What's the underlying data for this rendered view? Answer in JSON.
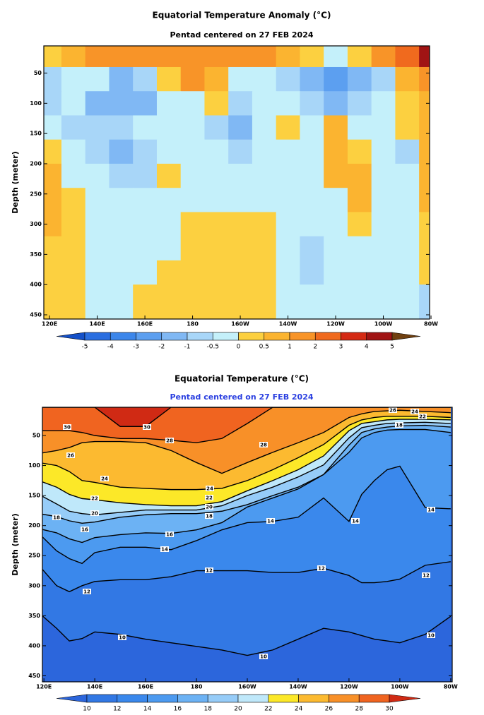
{
  "chart_data": [
    {
      "type": "heatmap",
      "title": "Equatorial Temperature Anomaly (°C)",
      "subtitle": "Pentad centered on 27 FEB 2024",
      "ylabel": "Depth (meter)",
      "xlim": [
        117.6,
        279.4
      ],
      "ylim": [
        5,
        457
      ],
      "xticks": [
        {
          "value": 120,
          "label": "120E"
        },
        {
          "value": 140,
          "label": "140E"
        },
        {
          "value": 160,
          "label": "160E"
        },
        {
          "value": 180,
          "label": "180"
        },
        {
          "value": 200,
          "label": "160W"
        },
        {
          "value": 220,
          "label": "140W"
        },
        {
          "value": 240,
          "label": "120W"
        },
        {
          "value": 260,
          "label": "100W"
        },
        {
          "value": 280,
          "label": "80W"
        }
      ],
      "yticks": [
        50,
        100,
        150,
        200,
        250,
        300,
        350,
        400,
        450
      ],
      "x": [
        120,
        130,
        140,
        150,
        160,
        170,
        180,
        190,
        200,
        210,
        220,
        230,
        240,
        250,
        260,
        270,
        280
      ],
      "y": [
        20,
        60,
        100,
        140,
        180,
        220,
        260,
        300,
        340,
        380,
        420
      ],
      "values": [
        [
          0.3,
          0.7,
          1.2,
          1.5,
          1.5,
          1.2,
          1.5,
          1.5,
          1.5,
          1.2,
          0.7,
          0.3,
          -0.3,
          0.3,
          1.2,
          2,
          4
        ],
        [
          -1,
          -0.3,
          -0.3,
          -1.2,
          -0.7,
          0.3,
          1.2,
          0.7,
          -0.3,
          -0.3,
          -1,
          -2,
          -3,
          -2,
          -0.7,
          0.7,
          1.5
        ],
        [
          -0.7,
          -0.3,
          -1.2,
          -1.5,
          -1.2,
          -0.3,
          -0.3,
          0.3,
          -0.7,
          -0.3,
          -0.3,
          -0.7,
          -1.5,
          -0.7,
          -0.3,
          0.3,
          0.7
        ],
        [
          -0.3,
          -0.7,
          -1,
          -0.7,
          -0.3,
          -0.3,
          -0.3,
          -0.7,
          -1.2,
          -0.3,
          0.3,
          -0.3,
          0.7,
          -0.3,
          -0.3,
          0.3,
          0.7
        ],
        [
          0.3,
          -0.3,
          -0.7,
          -1.2,
          -0.7,
          -0.3,
          -0.3,
          -0.3,
          -0.7,
          -0.3,
          -0.3,
          -0.3,
          0.7,
          0.3,
          -0.3,
          -0.7,
          0.7
        ],
        [
          0.7,
          -0.3,
          -0.3,
          -1,
          -0.7,
          0.3,
          -0.3,
          -0.3,
          -0.3,
          -0.3,
          -0.3,
          -0.3,
          0.7,
          0.7,
          -0.3,
          -0.3,
          0.7
        ],
        [
          0.7,
          0.3,
          -0.3,
          -0.3,
          -0.3,
          -0.3,
          -0.3,
          -0.3,
          -0.3,
          -0.3,
          -0.3,
          -0.3,
          -0.3,
          0.7,
          -0.3,
          -0.3,
          0.7
        ],
        [
          0.7,
          0.3,
          -0.3,
          -0.3,
          -0.3,
          -0.3,
          0.3,
          0.3,
          0.3,
          0.3,
          -0.3,
          -0.3,
          -0.3,
          0.3,
          -0.3,
          -0.3,
          0.3
        ],
        [
          0.3,
          0.3,
          -0.3,
          -0.3,
          -0.3,
          -0.3,
          0.3,
          0.3,
          0.3,
          0.3,
          -0.3,
          -0.7,
          -0.3,
          -0.3,
          -0.3,
          -0.3,
          0.3
        ],
        [
          0.3,
          0.3,
          -0.3,
          -0.3,
          -0.3,
          0.3,
          0.3,
          0.3,
          0.3,
          0.3,
          -0.3,
          -0.7,
          -0.3,
          -0.3,
          -0.3,
          -0.3,
          0.3
        ],
        [
          0.3,
          0.3,
          -0.3,
          -0.3,
          0.3,
          0.3,
          0.3,
          0.3,
          0.3,
          0.3,
          -0.3,
          -0.3,
          -0.3,
          -0.3,
          -0.3,
          -0.3,
          -0.7
        ]
      ],
      "colorbar": {
        "levels": [
          -5,
          -4,
          -3,
          -2,
          -1,
          -0.5,
          0,
          0.5,
          1,
          2,
          3,
          4,
          5
        ],
        "colors": [
          "#1450c8",
          "#2a6ee0",
          "#3c86ea",
          "#5c9ff0",
          "#80b8f4",
          "#a8d6f8",
          "#c4f0fa",
          "#fcd040",
          "#fbb430",
          "#f89428",
          "#f06a1e",
          "#d42a14",
          "#a01414",
          "#704010"
        ]
      }
    },
    {
      "type": "contour",
      "title": "Equatorial Temperature (°C)",
      "subtitle": "Pentad centered on 27 FEB 2024",
      "ylabel": "Depth (meter)",
      "xlim": [
        119.4,
        280.6
      ],
      "ylim": [
        3,
        460
      ],
      "xticks": [
        {
          "value": 120,
          "label": "120E"
        },
        {
          "value": 140,
          "label": "140E"
        },
        {
          "value": 160,
          "label": "160E"
        },
        {
          "value": 180,
          "label": "180"
        },
        {
          "value": 200,
          "label": "160W"
        },
        {
          "value": 220,
          "label": "140W"
        },
        {
          "value": 240,
          "label": "120W"
        },
        {
          "value": 260,
          "label": "100W"
        },
        {
          "value": 280,
          "label": "80W"
        }
      ],
      "yticks": [
        50,
        100,
        150,
        200,
        250,
        300,
        350,
        400,
        450
      ],
      "contour_x": [
        118,
        125,
        130,
        135,
        140,
        150,
        160,
        170,
        180,
        190,
        200,
        210,
        220,
        230,
        240,
        245,
        250,
        255,
        260,
        270,
        280
      ],
      "contours": [
        {
          "level": 10,
          "depth": [
            345,
            371,
            392,
            388,
            377,
            381,
            389,
            395,
            401,
            407,
            416,
            407,
            389,
            371,
            377,
            383,
            389,
            392,
            395,
            381,
            351
          ]
        },
        {
          "level": 12,
          "depth": [
            266,
            300,
            310,
            300,
            293,
            290,
            290,
            285,
            275,
            275,
            275,
            278,
            278,
            271,
            283,
            295,
            295,
            293,
            289,
            266,
            260
          ]
        },
        {
          "level": 14,
          "depth": [
            213,
            242,
            255,
            263,
            245,
            236,
            236,
            240,
            225,
            207,
            195,
            193,
            186,
            154,
            193,
            148,
            125,
            107,
            101,
            170,
            172
          ]
        },
        {
          "level": 16,
          "depth": [
            205,
            212,
            222,
            228,
            220,
            215,
            212,
            213,
            207,
            195,
            169,
            154,
            139,
            115,
            78,
            54,
            45,
            41,
            40,
            40,
            45
          ]
        },
        {
          "level": 18,
          "depth": [
            180,
            185,
            192,
            196,
            194,
            186,
            182,
            180,
            180,
            176,
            165,
            150,
            136,
            115,
            66,
            45,
            39,
            36,
            34,
            33,
            36
          ]
        },
        {
          "level": 20,
          "depth": [
            148,
            164,
            176,
            180,
            182,
            178,
            174,
            174,
            174,
            167,
            150,
            136,
            119,
            99,
            54,
            37,
            33,
            30,
            29,
            28,
            30
          ]
        },
        {
          "level": 22,
          "depth": [
            125,
            136,
            148,
            155,
            157,
            162,
            165,
            167,
            167,
            160,
            142,
            125,
            107,
            84,
            42,
            30,
            27,
            24,
            23,
            23,
            24
          ]
        },
        {
          "level": 24,
          "depth": [
            95,
            100,
            110,
            125,
            128,
            136,
            138,
            140,
            140,
            138,
            125,
            107,
            87,
            65,
            33,
            24,
            20,
            18,
            18,
            18,
            20
          ]
        },
        {
          "level": 26,
          "depth": [
            80,
            75,
            70,
            62,
            60,
            60,
            62,
            75,
            95,
            113,
            95,
            78,
            62,
            45,
            20,
            14,
            10,
            9,
            8,
            10,
            12
          ]
        },
        {
          "level": 28,
          "depth": [
            42,
            42,
            42,
            45,
            50,
            55,
            55,
            58,
            62,
            55,
            30,
            3,
            3,
            3,
            3,
            3,
            3,
            3,
            3,
            3,
            3
          ]
        },
        {
          "level": 30,
          "depth": [
            3,
            3,
            3,
            3,
            3,
            35,
            35,
            3,
            3,
            3,
            3,
            3,
            3,
            3,
            3,
            3,
            3,
            3,
            3,
            3,
            3
          ]
        }
      ],
      "contour_labels": [
        30,
        30,
        28,
        26,
        28,
        24,
        24,
        22,
        22,
        20,
        20,
        18,
        18,
        16,
        16,
        14,
        14,
        14,
        14,
        12,
        12,
        12,
        12,
        10,
        10,
        10,
        26,
        24,
        22,
        18
      ],
      "colorbar": {
        "levels": [
          10,
          12,
          14,
          16,
          18,
          20,
          22,
          24,
          26,
          28,
          30
        ],
        "colors": [
          "#2c66dc",
          "#3278e4",
          "#3a88ec",
          "#4c9af0",
          "#6cb2f4",
          "#96ccf8",
          "#bfe8fa",
          "#fce828",
          "#fcba30",
          "#f89028",
          "#f06420",
          "#d02a14"
        ]
      }
    }
  ]
}
